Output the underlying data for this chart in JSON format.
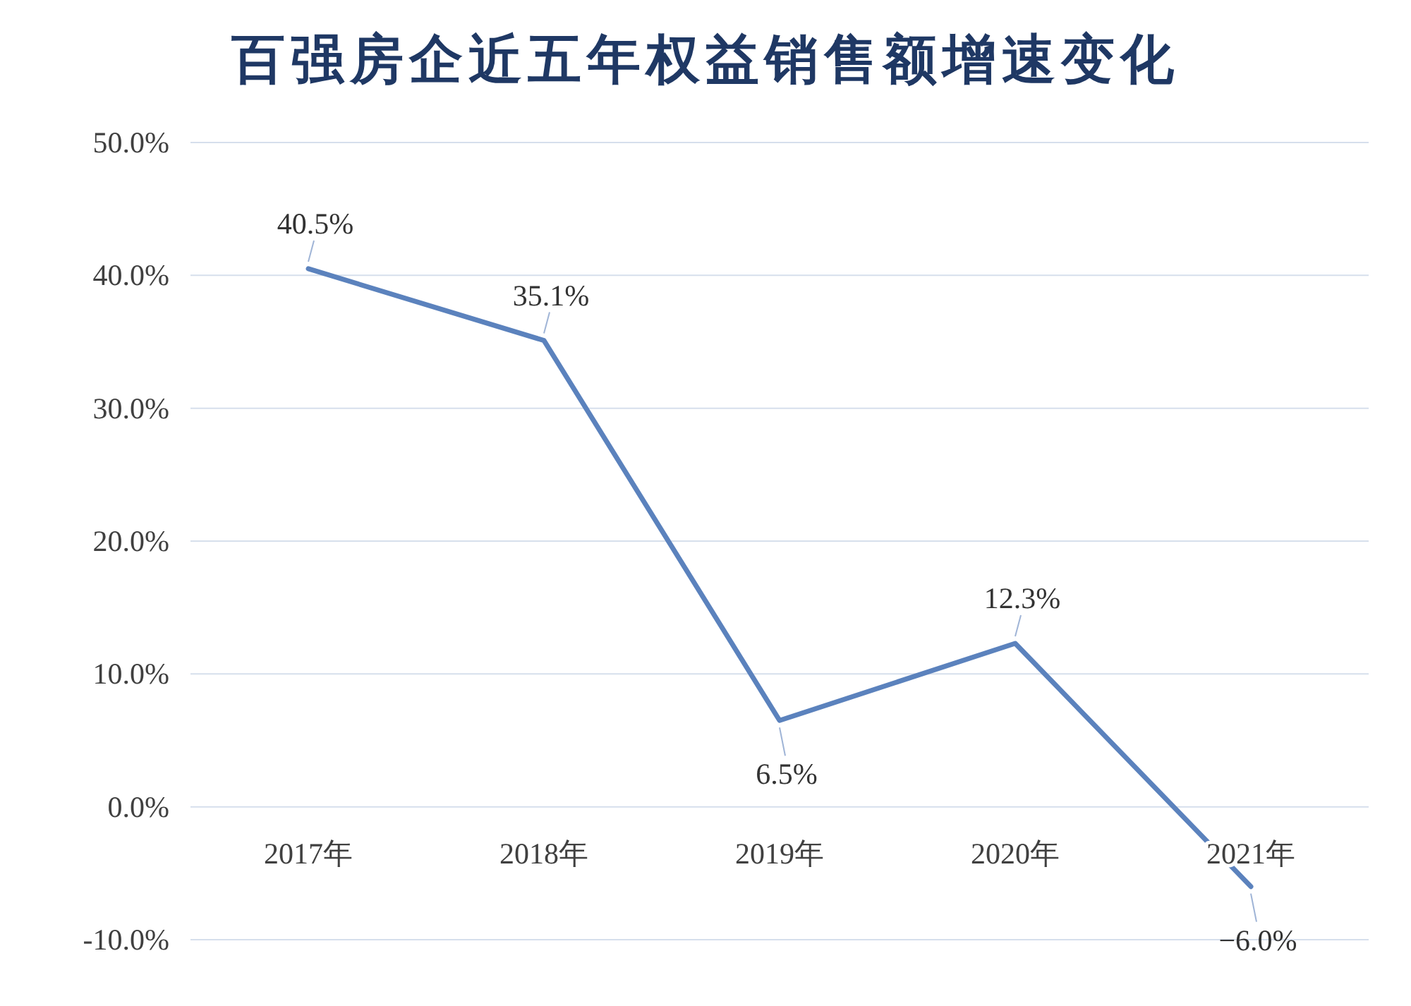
{
  "chart_data": {
    "type": "line",
    "title": "百强房企近五年权益销售额增速变化",
    "categories": [
      "2017年",
      "2018年",
      "2019年",
      "2020年",
      "2021年"
    ],
    "values": [
      40.5,
      35.1,
      6.5,
      12.3,
      -6.0
    ],
    "value_labels": [
      "40.5%",
      "35.1%",
      "6.5%",
      "12.3%",
      "−6.0%"
    ],
    "color": "#5b82bd",
    "ylim": [
      -10,
      50
    ],
    "yticks": [
      {
        "value": -10,
        "label": "-10.0%"
      },
      {
        "value": 0,
        "label": "0.0%"
      },
      {
        "value": 10,
        "label": "10.0%"
      },
      {
        "value": 20,
        "label": "20.0%"
      },
      {
        "value": 30,
        "label": "30.0%"
      },
      {
        "value": 40,
        "label": "40.0%"
      },
      {
        "value": 50,
        "label": "50.0%"
      }
    ],
    "grid": "y",
    "marker": "none",
    "line_style": "solid"
  }
}
